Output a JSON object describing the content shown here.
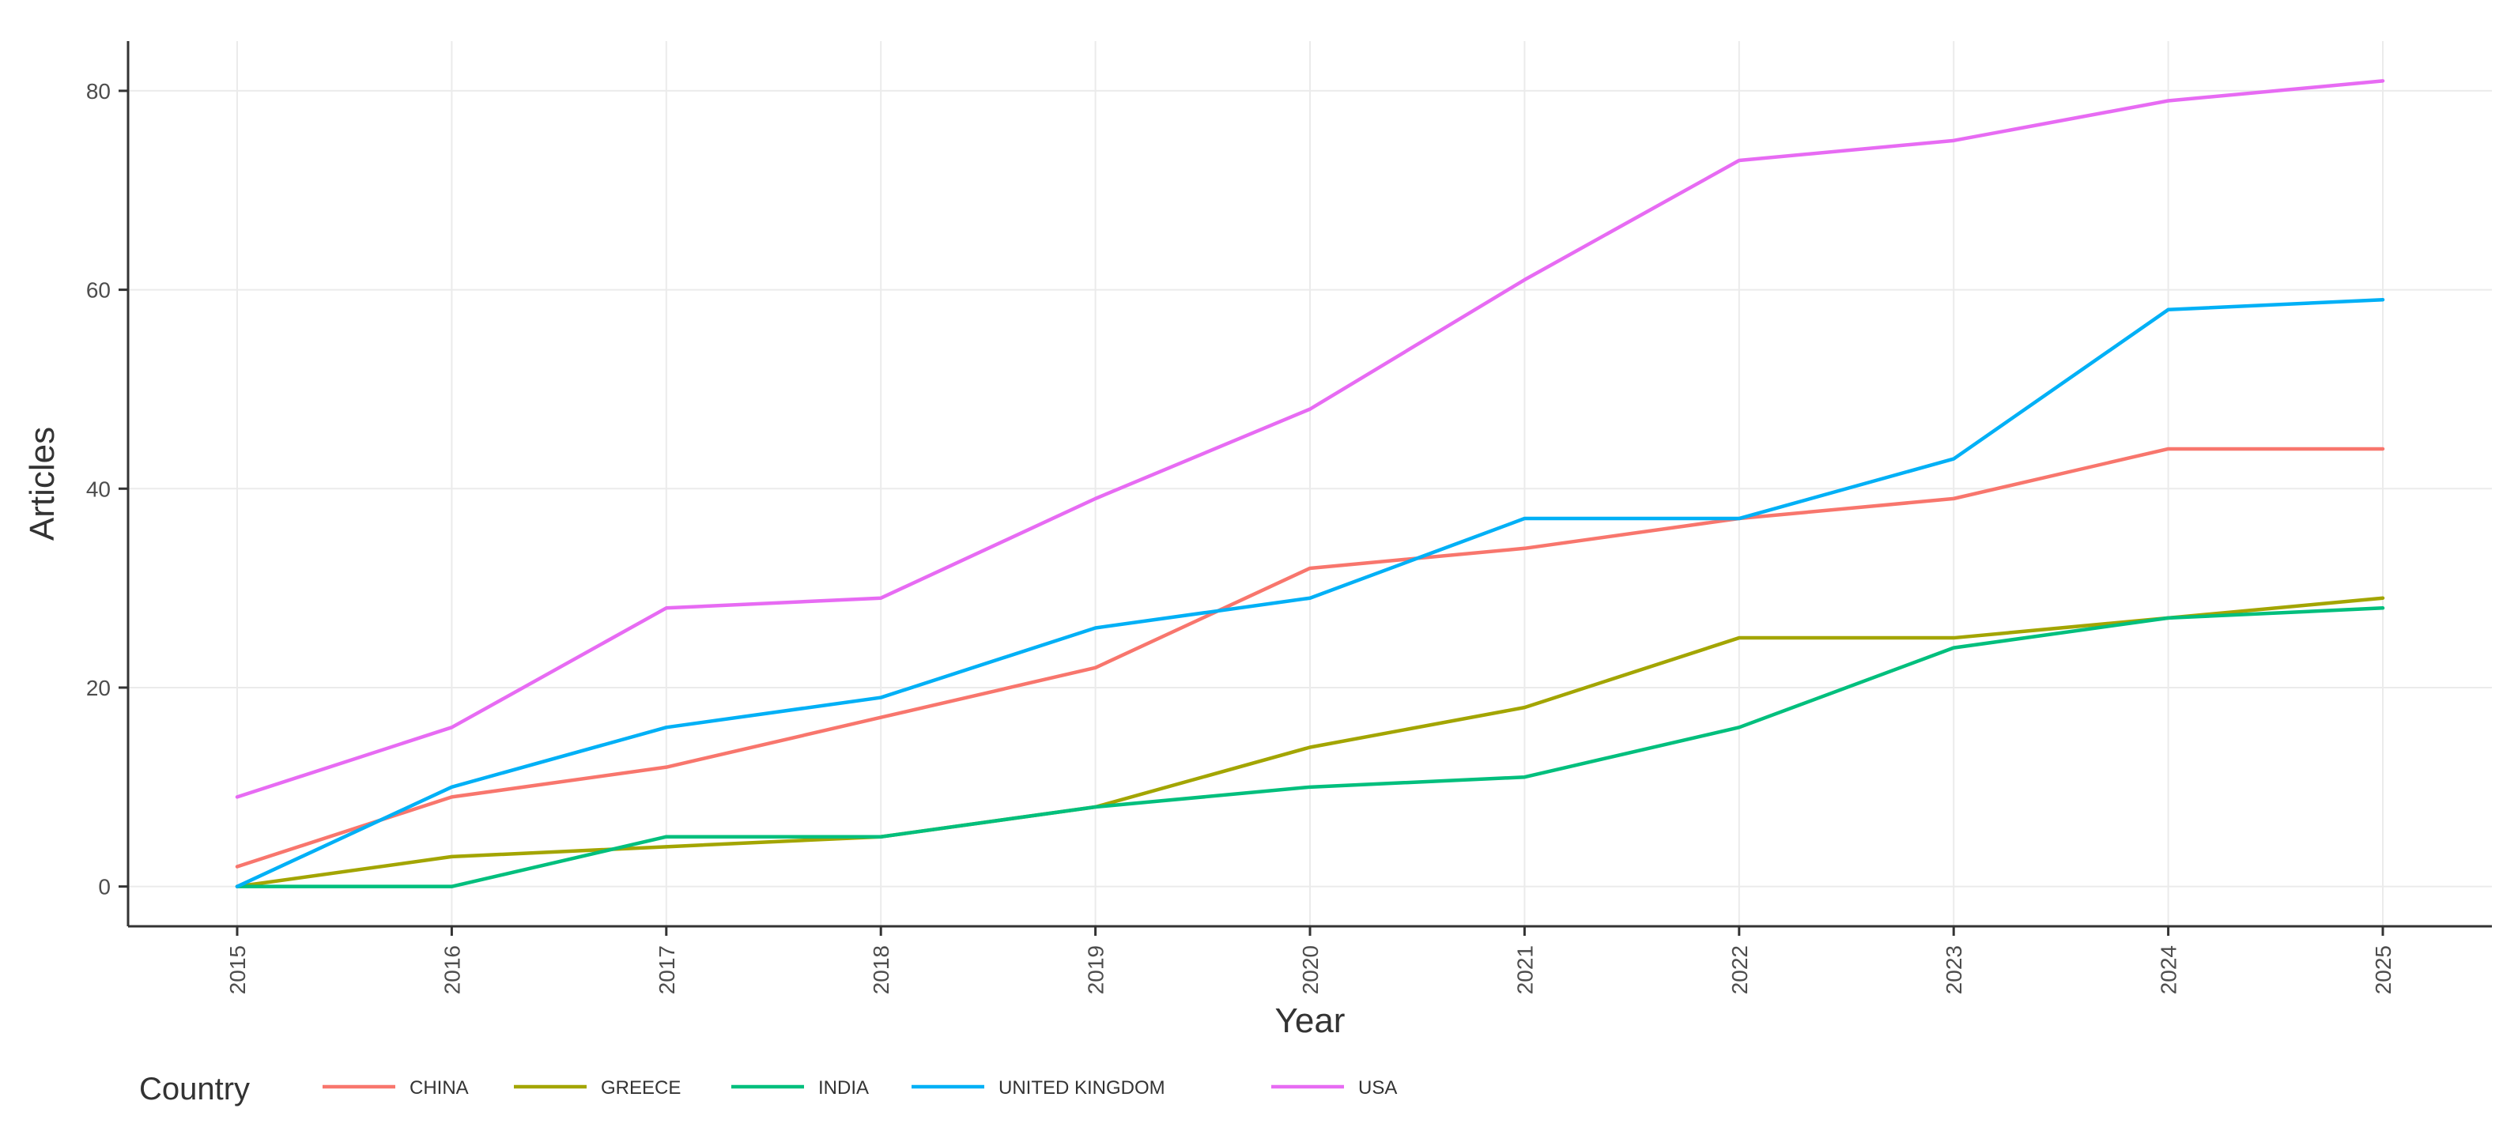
{
  "chart_data": {
    "type": "line",
    "xlabel": "Year",
    "ylabel": "Articles",
    "x": [
      2015,
      2016,
      2017,
      2018,
      2019,
      2020,
      2021,
      2022,
      2023,
      2024,
      2025
    ],
    "x_tick_labels": [
      "2015",
      "2016",
      "2017",
      "2018",
      "2019",
      "2020",
      "2021",
      "2022",
      "2023",
      "2024",
      "2025"
    ],
    "y_ticks": [
      0,
      20,
      40,
      60,
      80
    ],
    "y_tick_labels": [
      "0",
      "20",
      "40",
      "60",
      "80"
    ],
    "ylim": [
      -4,
      85
    ],
    "grid": true,
    "legend": {
      "title": "Country",
      "position": "bottom-left"
    },
    "series": [
      {
        "name": "CHINA",
        "color": "#F8766D",
        "values": [
          2,
          9,
          12,
          17,
          22,
          32,
          34,
          37,
          39,
          44,
          44
        ]
      },
      {
        "name": "GREECE",
        "color": "#A3A500",
        "values": [
          0,
          3,
          4,
          5,
          8,
          14,
          18,
          25,
          25,
          27,
          29
        ]
      },
      {
        "name": "INDIA",
        "color": "#00BF7D",
        "values": [
          0,
          0,
          5,
          5,
          8,
          10,
          11,
          16,
          24,
          27,
          28
        ]
      },
      {
        "name": "UNITED KINGDOM",
        "color": "#00B0F6",
        "values": [
          0,
          10,
          16,
          19,
          26,
          29,
          37,
          37,
          43,
          58,
          59
        ]
      },
      {
        "name": "USA",
        "color": "#E76BF3",
        "values": [
          9,
          16,
          28,
          29,
          39,
          48,
          61,
          73,
          75,
          79,
          81
        ]
      }
    ]
  }
}
